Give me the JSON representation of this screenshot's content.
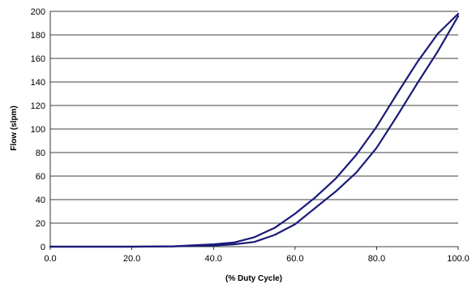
{
  "chart_data": {
    "type": "line",
    "title": "",
    "xlabel": "(% Duty Cycle)",
    "ylabel": "Flow (slpm)",
    "xlim": [
      0,
      100
    ],
    "ylim": [
      0,
      200
    ],
    "x_ticks": [
      "0.0",
      "20.0",
      "40.0",
      "60.0",
      "80.0",
      "100.0"
    ],
    "y_ticks": [
      "0",
      "20",
      "40",
      "60",
      "80",
      "100",
      "120",
      "140",
      "160",
      "180",
      "200"
    ],
    "grid": "horizontal",
    "legend": "none",
    "series": [
      {
        "color": "#1a1a7a",
        "points": [
          [
            0,
            0
          ],
          [
            20,
            0
          ],
          [
            30,
            0.3
          ],
          [
            40,
            2
          ],
          [
            45,
            3.5
          ],
          [
            50,
            8
          ],
          [
            55,
            16
          ],
          [
            60,
            28
          ],
          [
            65,
            42
          ],
          [
            70,
            58
          ],
          [
            75,
            78
          ],
          [
            80,
            102
          ],
          [
            85,
            130
          ],
          [
            90,
            157
          ],
          [
            95,
            181
          ],
          [
            100,
            198
          ]
        ]
      },
      {
        "color": "#1a1a7a",
        "points": [
          [
            0,
            0
          ],
          [
            20,
            0
          ],
          [
            30,
            0.2
          ],
          [
            40,
            1
          ],
          [
            45,
            2
          ],
          [
            50,
            4
          ],
          [
            55,
            10
          ],
          [
            60,
            19
          ],
          [
            65,
            33
          ],
          [
            70,
            47
          ],
          [
            75,
            63
          ],
          [
            80,
            84
          ],
          [
            85,
            111
          ],
          [
            90,
            139
          ],
          [
            95,
            166
          ],
          [
            100,
            196
          ]
        ]
      }
    ]
  }
}
